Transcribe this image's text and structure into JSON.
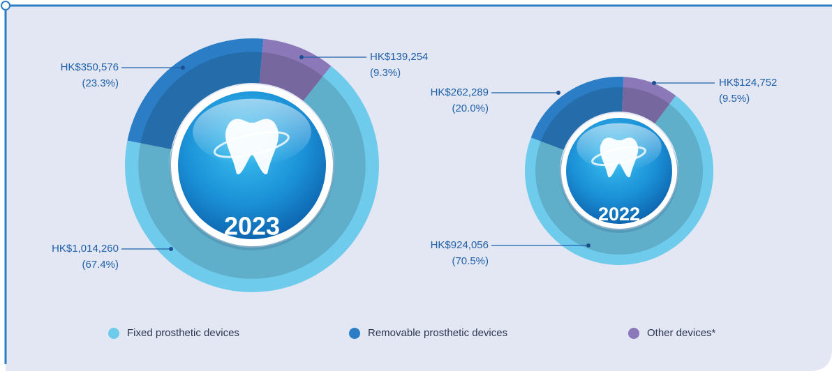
{
  "chart_data": [
    {
      "type": "pie",
      "title": "2023",
      "categories": [
        "Fixed prosthetic devices",
        "Removable prosthetic devices",
        "Other devices*"
      ],
      "values": [
        1014260,
        350576,
        139254
      ],
      "value_labels": [
        "HK$1,014,260",
        "HK$350,576",
        "HK$139,254"
      ],
      "share_labels": [
        "(67.4%)",
        "(23.3%)",
        "(9.3%)"
      ],
      "colors": [
        "#6fcbec",
        "#2b7ec6",
        "#8a78b9"
      ]
    },
    {
      "type": "pie",
      "title": "2022",
      "values": [
        924056,
        262289,
        124752
      ],
      "value_labels": [
        "HK$924,056",
        "HK$262,289",
        "HK$124,752"
      ],
      "share_labels": [
        "(70.5%)",
        "(20.0%)",
        "(9.5%)"
      ],
      "colors": [
        "#6fcbec",
        "#2b7ec6",
        "#8a78b9"
      ]
    }
  ]
}
